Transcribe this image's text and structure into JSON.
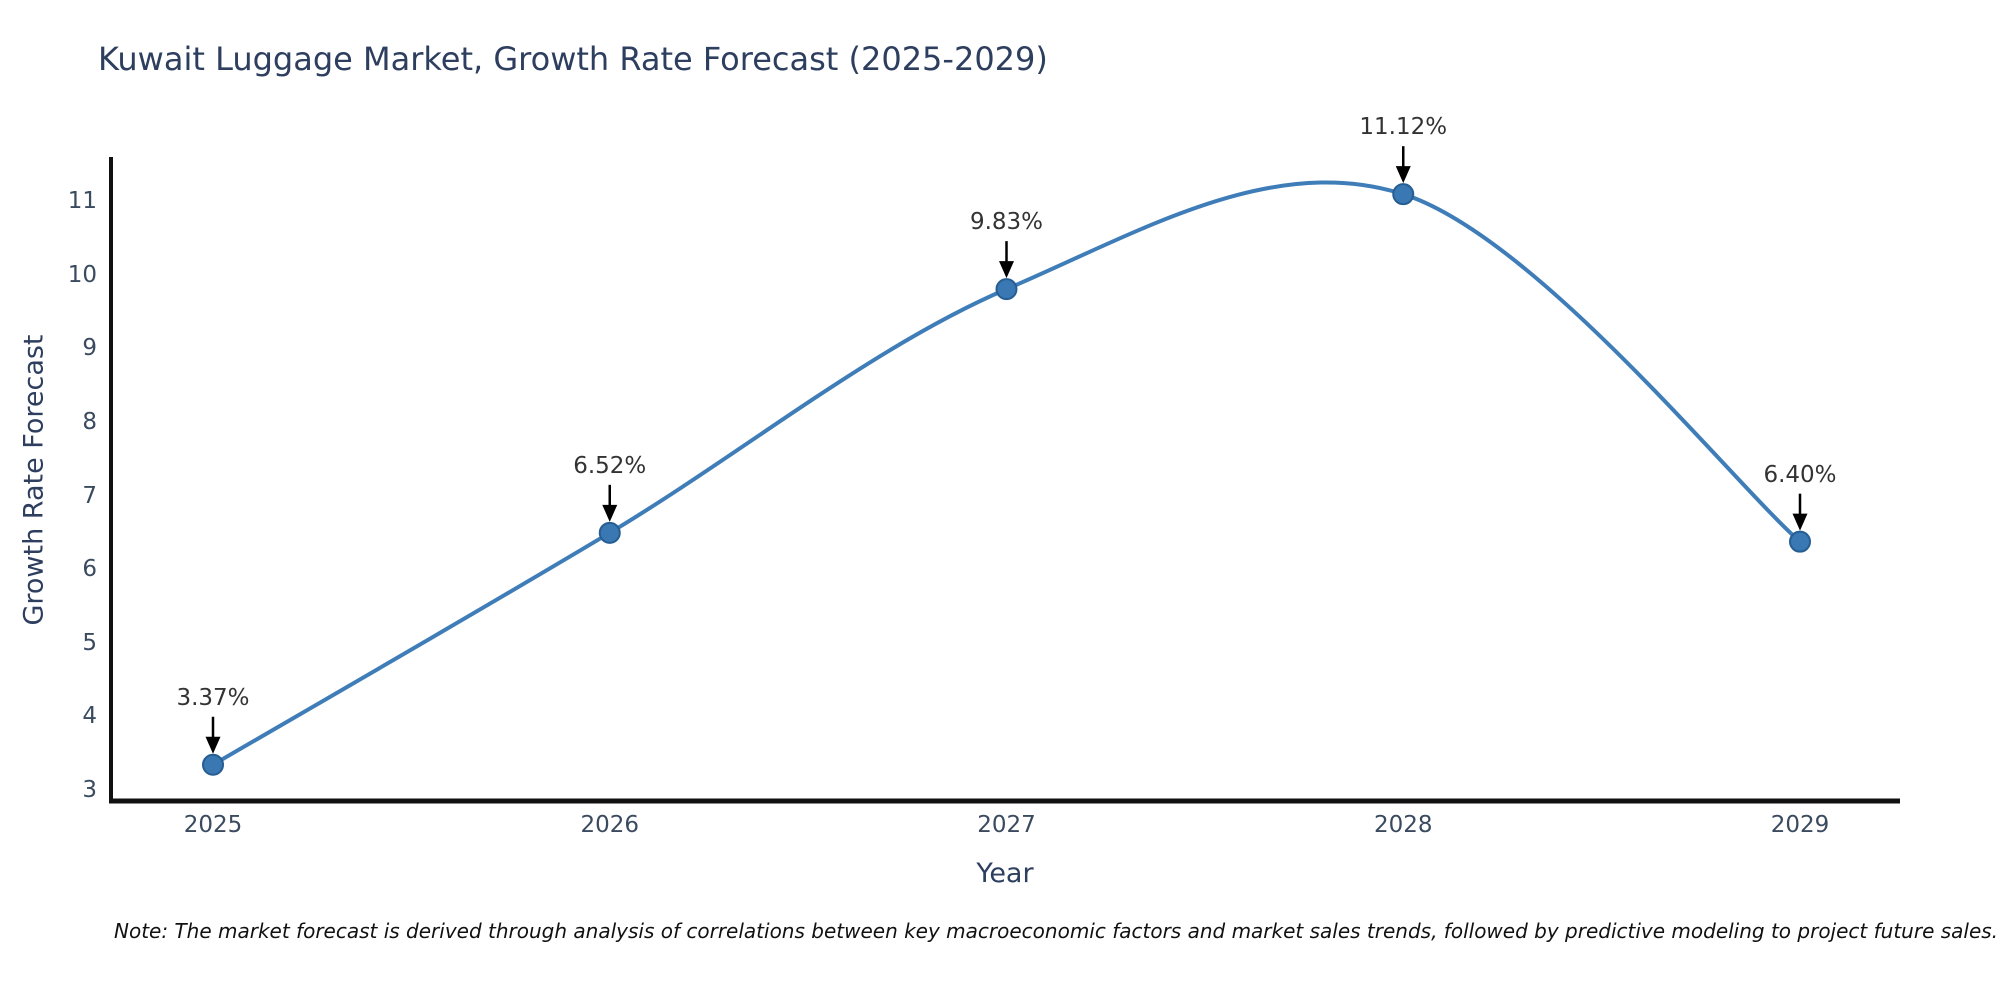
{
  "title": "Kuwait Luggage Market, Growth Rate Forecast (2025-2029)",
  "note": "Note: The market forecast is derived through analysis of correlations between key macroeconomic factors and market sales trends, followed by predictive modeling to project future sales.",
  "chart_data": {
    "type": "line",
    "title": "Kuwait Luggage Market, Growth Rate Forecast (2025-2029)",
    "xlabel": "Year",
    "ylabel": "Growth Rate Forecast",
    "x": [
      2025,
      2026,
      2027,
      2028,
      2029
    ],
    "values": [
      3.37,
      6.52,
      9.83,
      11.12,
      6.4
    ],
    "point_labels": [
      "3.37%",
      "6.52%",
      "9.83%",
      "11.12%",
      "6.40%"
    ],
    "yticks": [
      3,
      4,
      5,
      6,
      7,
      8,
      9,
      10,
      11
    ],
    "ylim": [
      2.9,
      11.7
    ],
    "xlim": [
      2024.74,
      2029.26
    ],
    "grid": false,
    "smooth": true,
    "legend": "none",
    "annotation_style": "black-down-arrow",
    "colors": {
      "line": "#3f7db8",
      "marker_fill": "#3a78b3",
      "marker_edge": "#265d92",
      "arrow": "#000000",
      "axis_spine": "#111111",
      "title_text": "#2d3e5f",
      "tick_text": "#3a4a5f",
      "label_text": "#333333"
    }
  }
}
